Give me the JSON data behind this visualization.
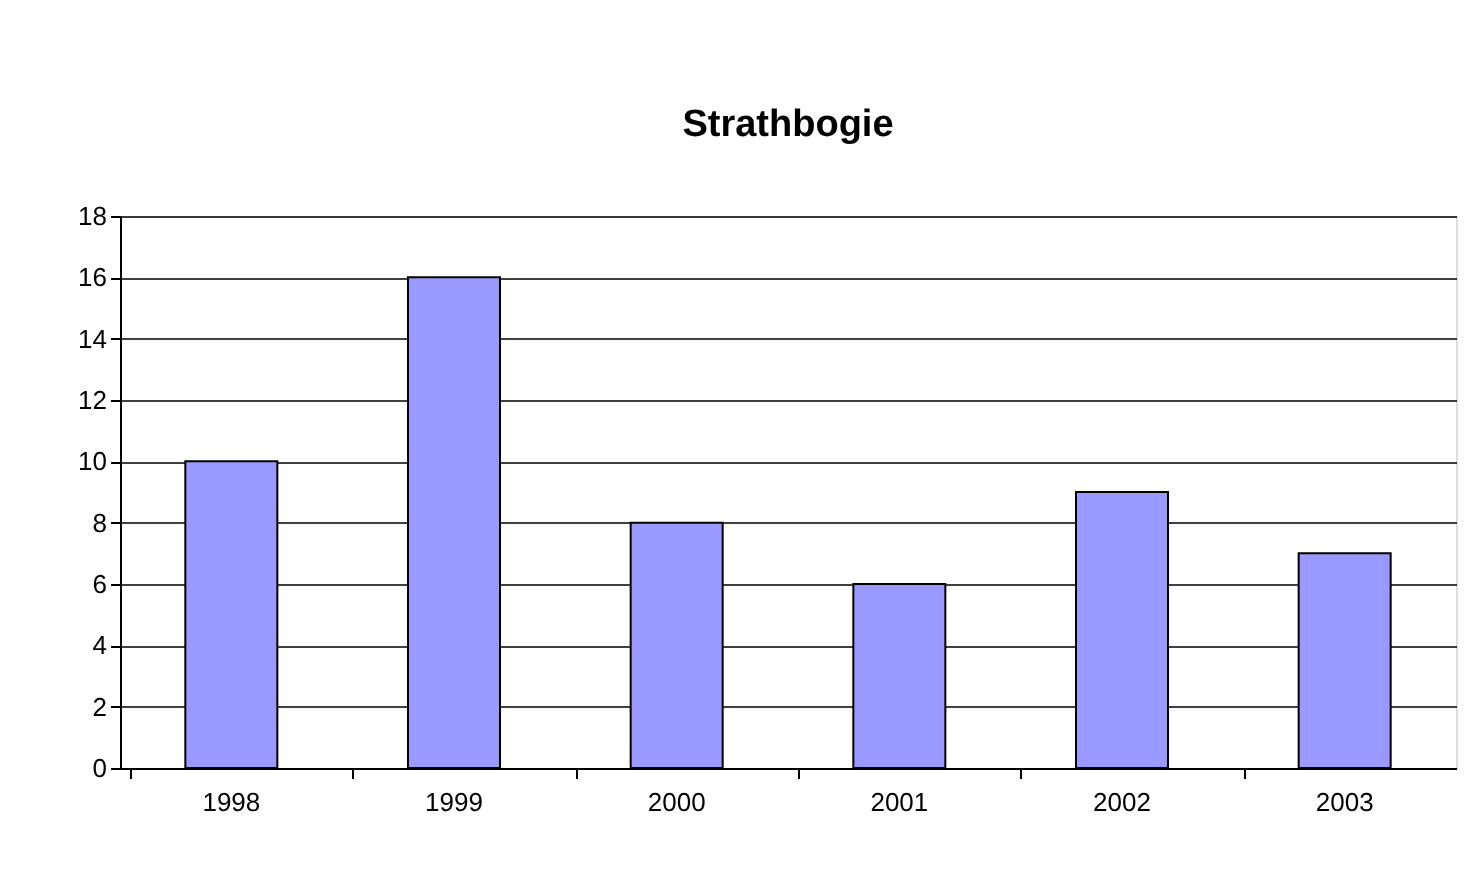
{
  "chart_data": {
    "type": "bar",
    "title": "Strathbogie",
    "categories": [
      "1998",
      "1999",
      "2000",
      "2001",
      "2002",
      "2003"
    ],
    "values": [
      10,
      16,
      8,
      6,
      9,
      7
    ],
    "color": "#9999ff",
    "ylim": [
      0,
      18
    ],
    "yticks": [
      0,
      2,
      4,
      6,
      8,
      10,
      12,
      14,
      16,
      18
    ],
    "grid": "y"
  }
}
